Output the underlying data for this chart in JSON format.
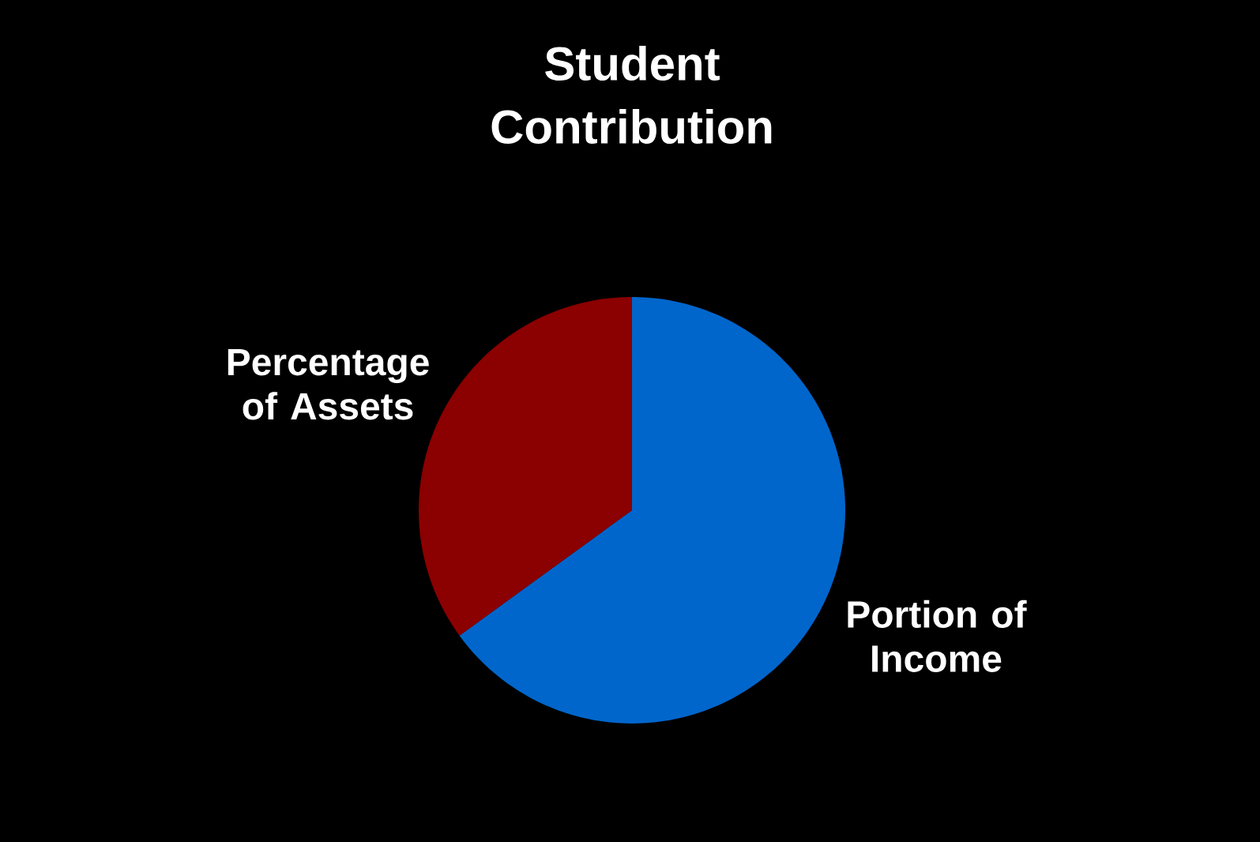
{
  "chart_data": {
    "type": "pie",
    "title": "Student Contribution",
    "categories": [
      "Percentage of Assets",
      "Portion of Income"
    ],
    "values": [
      35,
      65
    ],
    "colors": [
      "#8b0000",
      "#0066cc"
    ]
  }
}
